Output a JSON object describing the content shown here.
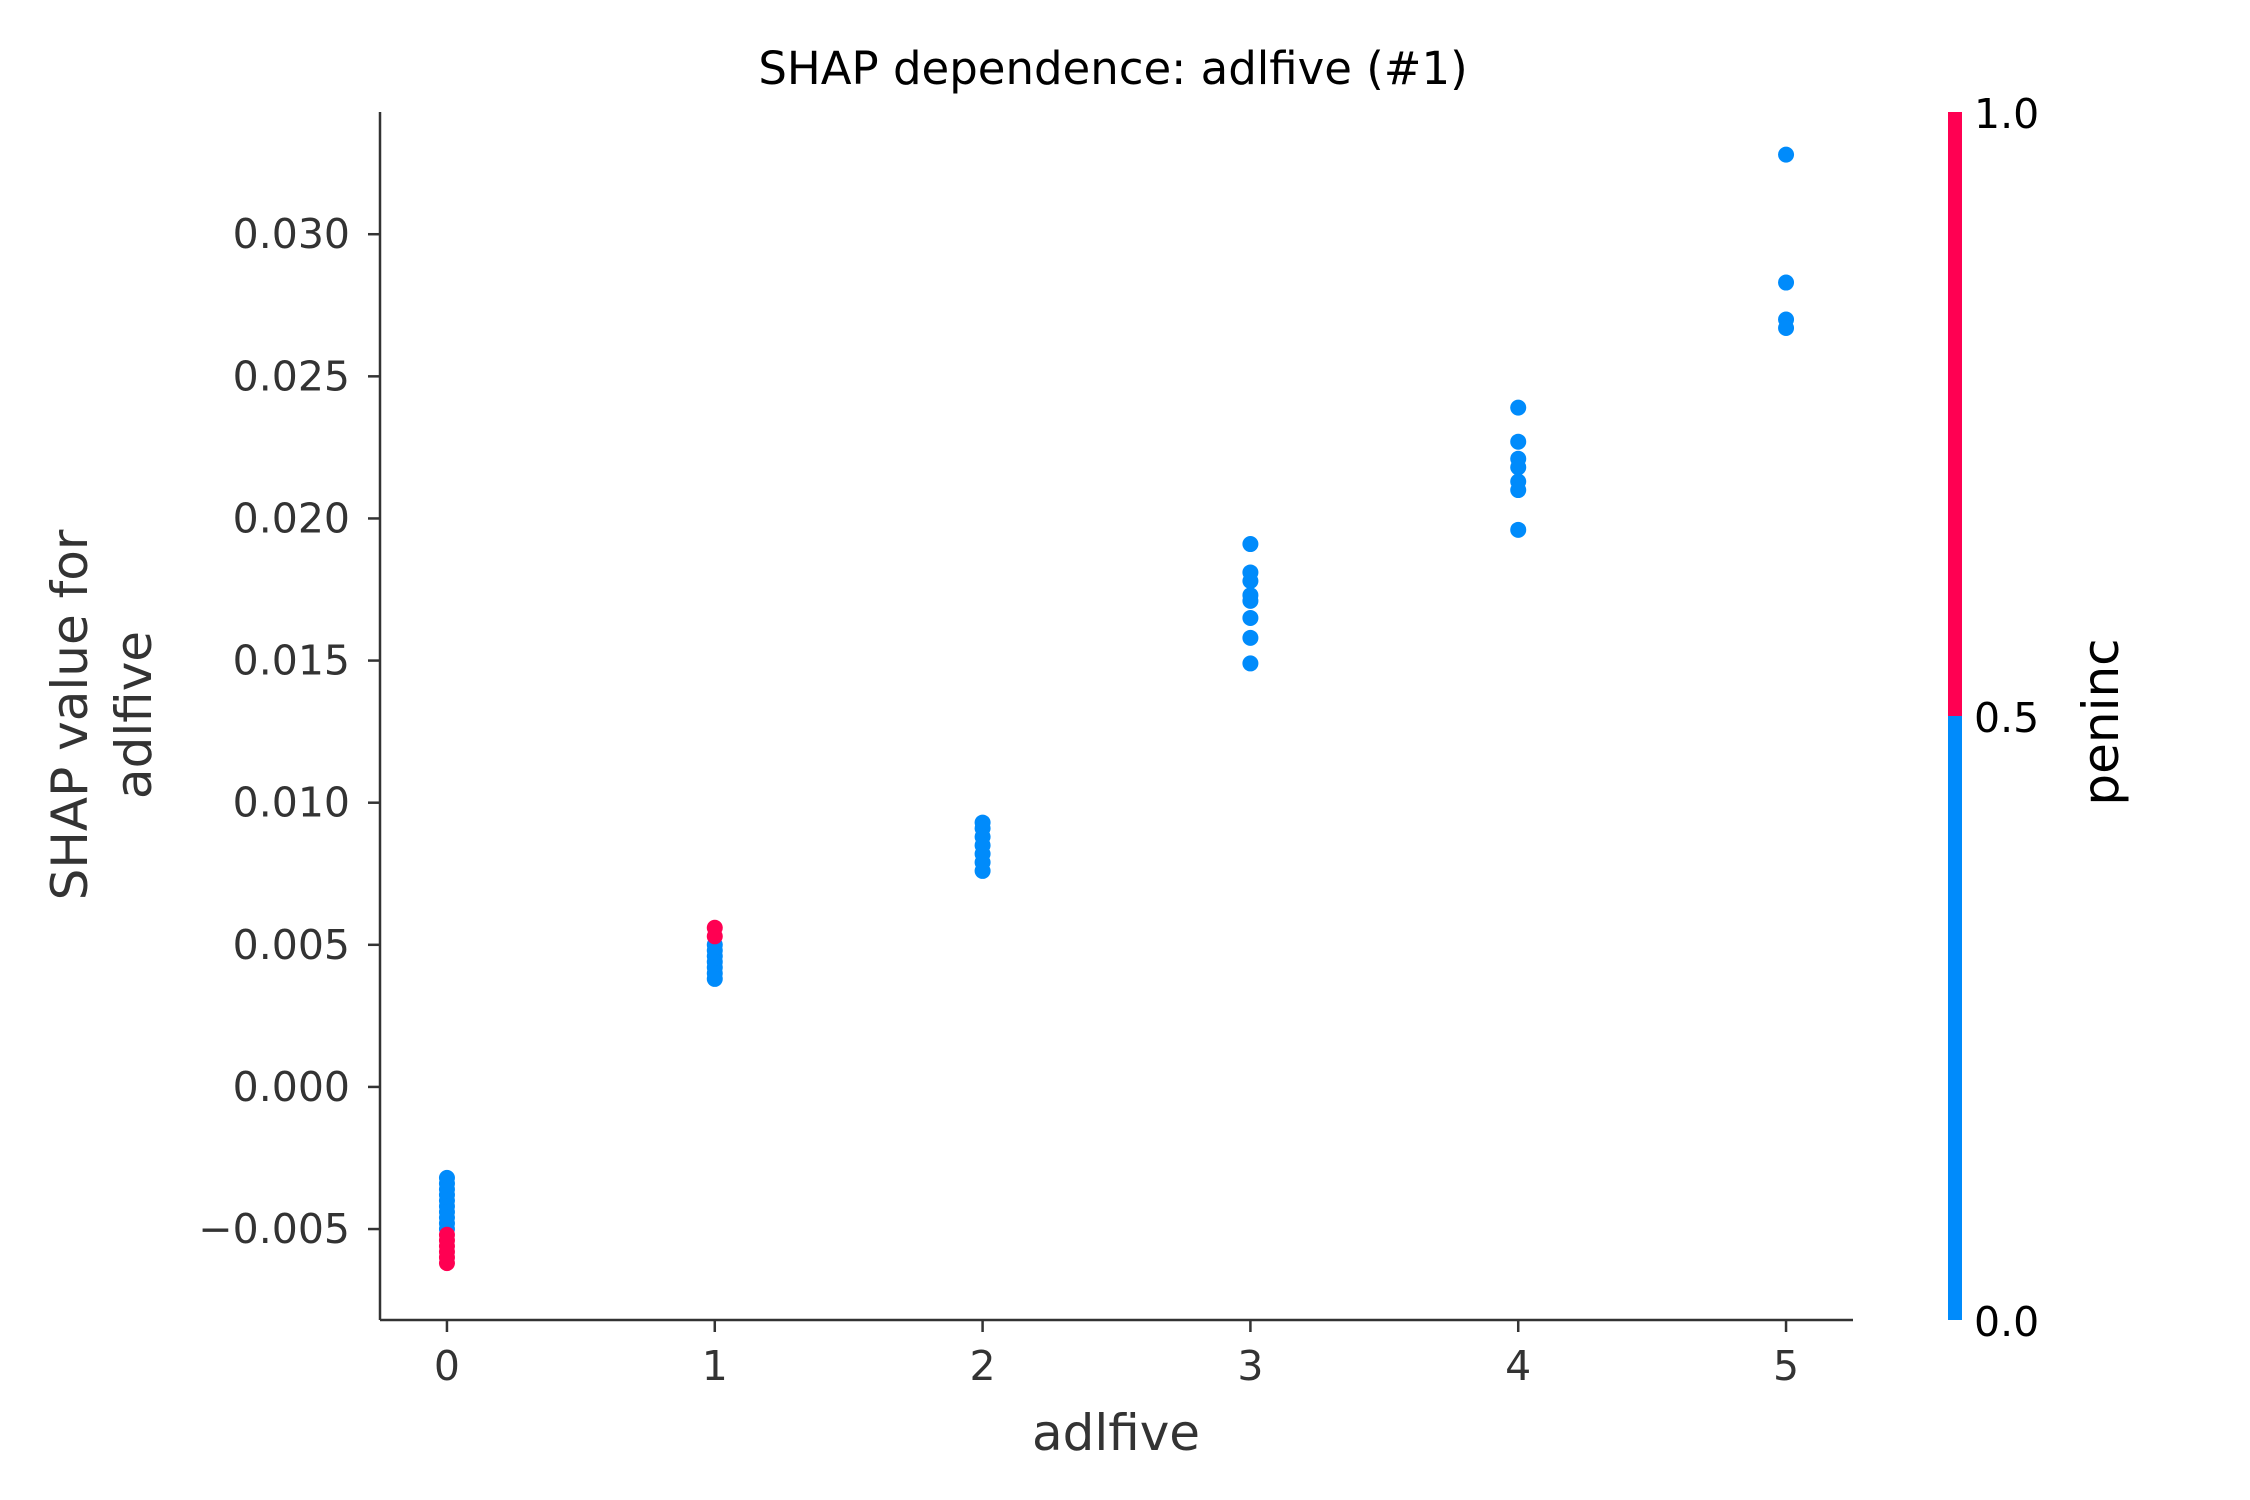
{
  "chart_data": {
    "type": "scatter",
    "title": "SHAP dependence: adlfive (#1)",
    "xlabel": "adlfive",
    "ylabel_lines": [
      "SHAP value for",
      "adlfive"
    ],
    "xlim": [
      -0.25,
      5.25
    ],
    "ylim": [
      -0.0082,
      0.0343
    ],
    "x_ticks": [
      0,
      1,
      2,
      3,
      4,
      5
    ],
    "x_tick_labels": [
      "0",
      "1",
      "2",
      "3",
      "4",
      "5"
    ],
    "y_ticks": [
      -0.005,
      0.0,
      0.005,
      0.01,
      0.015,
      0.02,
      0.025,
      0.03
    ],
    "y_tick_labels": [
      "−0.005",
      "0.000",
      "0.005",
      "0.010",
      "0.015",
      "0.020",
      "0.025",
      "0.030"
    ],
    "grid": false,
    "colorbar": {
      "label": "peninc",
      "ticks": [
        0.0,
        0.5,
        1.0
      ],
      "tick_labels": [
        "0.0",
        "0.5",
        "1.0"
      ],
      "low_color": "#008bfb",
      "high_color": "#ff0052"
    },
    "series": [
      {
        "color_value": 0.0,
        "color": "#008bfb",
        "points": [
          [
            0,
            -0.0032
          ],
          [
            0,
            -0.0034
          ],
          [
            0,
            -0.0036
          ],
          [
            0,
            -0.0038
          ],
          [
            0,
            -0.004
          ],
          [
            0,
            -0.0042
          ],
          [
            0,
            -0.0044
          ],
          [
            0,
            -0.0046
          ],
          [
            0,
            -0.0048
          ],
          [
            0,
            -0.005
          ],
          [
            1,
            0.005
          ],
          [
            1,
            0.0048
          ],
          [
            1,
            0.0046
          ],
          [
            1,
            0.0044
          ],
          [
            1,
            0.0042
          ],
          [
            1,
            0.004
          ],
          [
            1,
            0.0038
          ],
          [
            2,
            0.0093
          ],
          [
            2,
            0.0091
          ],
          [
            2,
            0.0088
          ],
          [
            2,
            0.0085
          ],
          [
            2,
            0.0082
          ],
          [
            2,
            0.0079
          ],
          [
            2,
            0.0076
          ],
          [
            3,
            0.0191
          ],
          [
            3,
            0.0181
          ],
          [
            3,
            0.0178
          ],
          [
            3,
            0.0173
          ],
          [
            3,
            0.0171
          ],
          [
            3,
            0.0165
          ],
          [
            3,
            0.0158
          ],
          [
            3,
            0.0149
          ],
          [
            4,
            0.0239
          ],
          [
            4,
            0.0227
          ],
          [
            4,
            0.0221
          ],
          [
            4,
            0.0218
          ],
          [
            4,
            0.0213
          ],
          [
            4,
            0.021
          ],
          [
            4,
            0.0196
          ],
          [
            5,
            0.0328
          ],
          [
            5,
            0.0283
          ],
          [
            5,
            0.027
          ],
          [
            5,
            0.0267
          ]
        ]
      },
      {
        "color_value": 1.0,
        "color": "#ff0052",
        "points": [
          [
            0,
            -0.0052
          ],
          [
            0,
            -0.0054
          ],
          [
            0,
            -0.0056
          ],
          [
            0,
            -0.0058
          ],
          [
            0,
            -0.006
          ],
          [
            0,
            -0.0062
          ],
          [
            1,
            0.0056
          ],
          [
            1,
            0.0053
          ]
        ]
      }
    ]
  }
}
